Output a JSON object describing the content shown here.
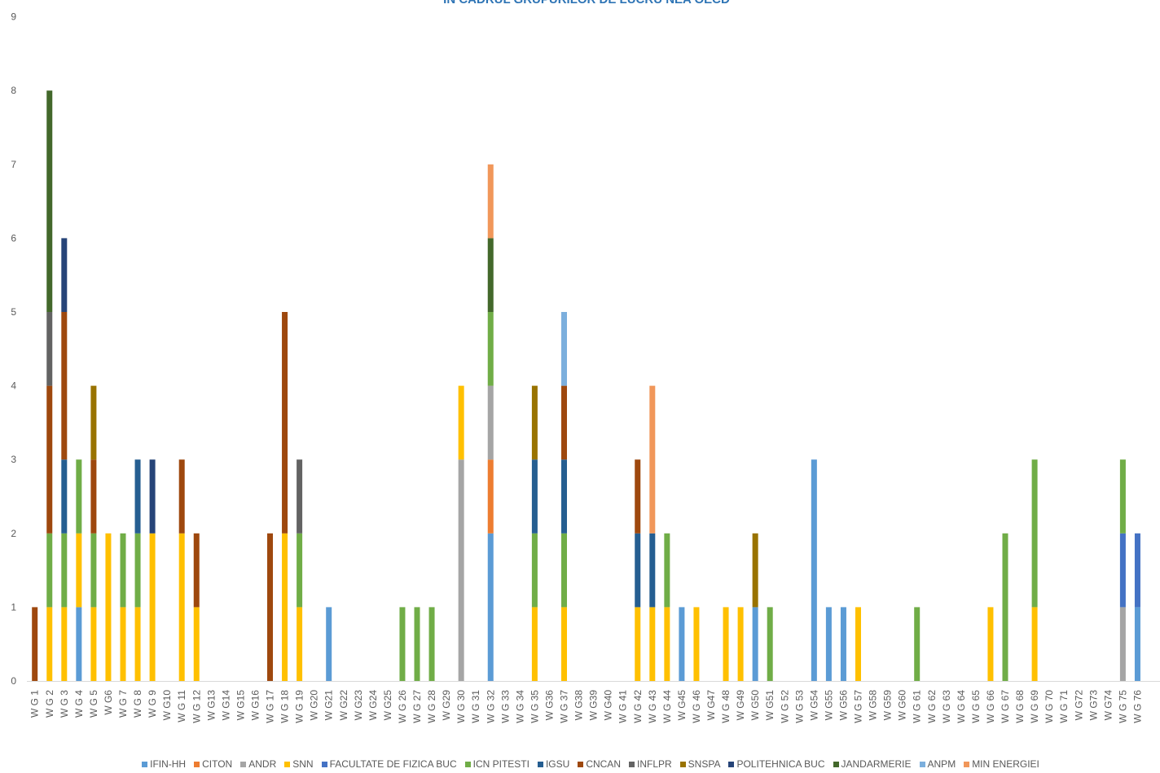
{
  "title": "ÎN CADRUL GRUPURILOR DE LUCRU NEA OECD",
  "chart_data": {
    "type": "bar",
    "stacked": true,
    "title": "ÎN CADRUL GRUPURILOR DE LUCRU NEA OECD",
    "xlabel": "",
    "ylabel": "",
    "ylim": [
      0,
      9
    ],
    "yticks": [
      "0",
      "1",
      "2",
      "3",
      "4",
      "5",
      "6",
      "7",
      "8",
      "9"
    ],
    "grid": false,
    "legend_position": "bottom",
    "categories": [
      "W G 1",
      "W G 2",
      "W G 3",
      "W G 4",
      "W G 5",
      "W G6",
      "W G 7",
      "W G 8",
      "W G 9",
      "W G10",
      "W G 11",
      "W G 12",
      "W G13",
      "W G14",
      "W G15",
      "W G16",
      "W G 17",
      "W G 18",
      "W G 19",
      "W G20",
      "W G21",
      "W G22",
      "W G23",
      "W G24",
      "W G25",
      "W G 26",
      "W G 27",
      "W G 28",
      "W G29",
      "W G 30",
      "W G 31",
      "W G 32",
      "W G 33",
      "W G 34",
      "W G 35",
      "W G36",
      "W G 37",
      "W G38",
      "W G39",
      "W G40",
      "W G 41",
      "W G 42",
      "W G 43",
      "W G 44",
      "W G45",
      "W G 46",
      "W G47",
      "W G 48",
      "W G49",
      "W G50",
      "W G51",
      "W G 52",
      "W G 53",
      "W G54",
      "W G55",
      "W G56",
      "W G 57",
      "W G58",
      "W G59",
      "W G60",
      "W G 61",
      "W G 62",
      "W G 63",
      "W G 64",
      "W G 65",
      "W G 66",
      "W G 67",
      "W G 68",
      "W G 69",
      "W G 70",
      "W G 71",
      "W G72",
      "W G73",
      "W G74",
      "W G 75",
      "W G 76"
    ],
    "series": [
      {
        "name": "IFIN-HH",
        "color": "#5b9bd5",
        "values": [
          0,
          0,
          0,
          1,
          0,
          0,
          0,
          0,
          0,
          0,
          0,
          0,
          0,
          0,
          0,
          0,
          0,
          0,
          0,
          0,
          1,
          0,
          0,
          0,
          0,
          0,
          0,
          0,
          0,
          0,
          0,
          2,
          0,
          0,
          0,
          0,
          0,
          0,
          0,
          0,
          0,
          0,
          0,
          0,
          1,
          0,
          0,
          0,
          0,
          1,
          0,
          0,
          0,
          3,
          1,
          1,
          0,
          0,
          0,
          0,
          0,
          0,
          0,
          0,
          0,
          0,
          0,
          0,
          0,
          0,
          0,
          0,
          0,
          0,
          0,
          1
        ]
      },
      {
        "name": "CITON",
        "color": "#ed7d31",
        "values": [
          0,
          0,
          0,
          0,
          0,
          0,
          0,
          0,
          0,
          0,
          0,
          0,
          0,
          0,
          0,
          0,
          0,
          0,
          0,
          0,
          0,
          0,
          0,
          0,
          0,
          0,
          0,
          0,
          0,
          0,
          0,
          1,
          0,
          0,
          0,
          0,
          0,
          0,
          0,
          0,
          0,
          0,
          0,
          0,
          0,
          0,
          0,
          0,
          0,
          0,
          0,
          0,
          0,
          0,
          0,
          0,
          0,
          0,
          0,
          0,
          0,
          0,
          0,
          0,
          0,
          0,
          0,
          0,
          0,
          0,
          0,
          0,
          0,
          0,
          0,
          0
        ]
      },
      {
        "name": "ANDR",
        "color": "#a5a5a5",
        "values": [
          0,
          0,
          0,
          0,
          0,
          0,
          0,
          0,
          0,
          0,
          0,
          0,
          0,
          0,
          0,
          0,
          0,
          0,
          0,
          0,
          0,
          0,
          0,
          0,
          0,
          0,
          0,
          0,
          0,
          3,
          0,
          1,
          0,
          0,
          0,
          0,
          0,
          0,
          0,
          0,
          0,
          0,
          0,
          0,
          0,
          0,
          0,
          0,
          0,
          0,
          0,
          0,
          0,
          0,
          0,
          0,
          0,
          0,
          0,
          0,
          0,
          0,
          0,
          0,
          0,
          0,
          0,
          0,
          0,
          0,
          0,
          0,
          0,
          0,
          1,
          0
        ]
      },
      {
        "name": "SNN",
        "color": "#ffc000",
        "values": [
          0,
          1,
          1,
          1,
          1,
          2,
          1,
          1,
          2,
          0,
          2,
          1,
          0,
          0,
          0,
          0,
          0,
          2,
          1,
          0,
          0,
          0,
          0,
          0,
          0,
          0,
          0,
          0,
          0,
          1,
          0,
          0,
          0,
          0,
          1,
          0,
          1,
          0,
          0,
          0,
          0,
          1,
          1,
          1,
          0,
          1,
          0,
          1,
          1,
          0,
          0,
          0,
          0,
          0,
          0,
          0,
          1,
          0,
          0,
          0,
          0,
          0,
          0,
          0,
          0,
          1,
          0,
          0,
          1,
          0,
          0,
          0,
          0,
          0,
          0,
          0
        ]
      },
      {
        "name": "FACULTATE DE FIZICA BUC",
        "color": "#4472c4",
        "values": [
          0,
          0,
          0,
          0,
          0,
          0,
          0,
          0,
          0,
          0,
          0,
          0,
          0,
          0,
          0,
          0,
          0,
          0,
          0,
          0,
          0,
          0,
          0,
          0,
          0,
          0,
          0,
          0,
          0,
          0,
          0,
          0,
          0,
          0,
          0,
          0,
          0,
          0,
          0,
          0,
          0,
          0,
          0,
          0,
          0,
          0,
          0,
          0,
          0,
          0,
          0,
          0,
          0,
          0,
          0,
          0,
          0,
          0,
          0,
          0,
          0,
          0,
          0,
          0,
          0,
          0,
          0,
          0,
          0,
          0,
          0,
          0,
          0,
          0,
          1,
          1
        ]
      },
      {
        "name": "ICN PITESTI",
        "color": "#70ad47",
        "values": [
          0,
          1,
          1,
          1,
          1,
          0,
          1,
          1,
          0,
          0,
          0,
          0,
          0,
          0,
          0,
          0,
          0,
          0,
          1,
          0,
          0,
          0,
          0,
          0,
          0,
          1,
          1,
          1,
          0,
          0,
          0,
          1,
          0,
          0,
          1,
          0,
          1,
          0,
          0,
          0,
          0,
          0,
          0,
          1,
          0,
          0,
          0,
          0,
          0,
          0,
          1,
          0,
          0,
          0,
          0,
          0,
          0,
          0,
          0,
          0,
          1,
          0,
          0,
          0,
          0,
          0,
          2,
          0,
          2,
          0,
          0,
          0,
          0,
          0,
          1,
          0
        ]
      },
      {
        "name": "IGSU",
        "color": "#255e91",
        "values": [
          0,
          0,
          1,
          0,
          0,
          0,
          0,
          1,
          0,
          0,
          0,
          0,
          0,
          0,
          0,
          0,
          0,
          0,
          0,
          0,
          0,
          0,
          0,
          0,
          0,
          0,
          0,
          0,
          0,
          0,
          0,
          0,
          0,
          0,
          1,
          0,
          1,
          0,
          0,
          0,
          0,
          1,
          1,
          0,
          0,
          0,
          0,
          0,
          0,
          0,
          0,
          0,
          0,
          0,
          0,
          0,
          0,
          0,
          0,
          0,
          0,
          0,
          0,
          0,
          0,
          0,
          0,
          0,
          0,
          0,
          0,
          0,
          0,
          0,
          0,
          0
        ]
      },
      {
        "name": "CNCAN",
        "color": "#9e480e",
        "values": [
          1,
          2,
          2,
          0,
          1,
          0,
          0,
          0,
          0,
          0,
          1,
          1,
          0,
          0,
          0,
          0,
          2,
          3,
          0,
          0,
          0,
          0,
          0,
          0,
          0,
          0,
          0,
          0,
          0,
          0,
          0,
          0,
          0,
          0,
          0,
          0,
          1,
          0,
          0,
          0,
          0,
          1,
          0,
          0,
          0,
          0,
          0,
          0,
          0,
          0,
          0,
          0,
          0,
          0,
          0,
          0,
          0,
          0,
          0,
          0,
          0,
          0,
          0,
          0,
          0,
          0,
          0,
          0,
          0,
          0,
          0,
          0,
          0,
          0,
          0,
          0
        ]
      },
      {
        "name": "INFLPR",
        "color": "#636363",
        "values": [
          0,
          1,
          0,
          0,
          0,
          0,
          0,
          0,
          0,
          0,
          0,
          0,
          0,
          0,
          0,
          0,
          0,
          0,
          1,
          0,
          0,
          0,
          0,
          0,
          0,
          0,
          0,
          0,
          0,
          0,
          0,
          0,
          0,
          0,
          0,
          0,
          0,
          0,
          0,
          0,
          0,
          0,
          0,
          0,
          0,
          0,
          0,
          0,
          0,
          0,
          0,
          0,
          0,
          0,
          0,
          0,
          0,
          0,
          0,
          0,
          0,
          0,
          0,
          0,
          0,
          0,
          0,
          0,
          0,
          0,
          0,
          0,
          0,
          0,
          0,
          0
        ]
      },
      {
        "name": "SNSPA",
        "color": "#997300",
        "values": [
          0,
          0,
          0,
          0,
          1,
          0,
          0,
          0,
          0,
          0,
          0,
          0,
          0,
          0,
          0,
          0,
          0,
          0,
          0,
          0,
          0,
          0,
          0,
          0,
          0,
          0,
          0,
          0,
          0,
          0,
          0,
          0,
          0,
          0,
          1,
          0,
          0,
          0,
          0,
          0,
          0,
          0,
          0,
          0,
          0,
          0,
          0,
          0,
          0,
          1,
          0,
          0,
          0,
          0,
          0,
          0,
          0,
          0,
          0,
          0,
          0,
          0,
          0,
          0,
          0,
          0,
          0,
          0,
          0,
          0,
          0,
          0,
          0,
          0,
          0,
          0
        ]
      },
      {
        "name": "POLITEHNICA BUC",
        "color": "#264478",
        "values": [
          0,
          0,
          1,
          0,
          0,
          0,
          0,
          0,
          1,
          0,
          0,
          0,
          0,
          0,
          0,
          0,
          0,
          0,
          0,
          0,
          0,
          0,
          0,
          0,
          0,
          0,
          0,
          0,
          0,
          0,
          0,
          0,
          0,
          0,
          0,
          0,
          0,
          0,
          0,
          0,
          0,
          0,
          0,
          0,
          0,
          0,
          0,
          0,
          0,
          0,
          0,
          0,
          0,
          0,
          0,
          0,
          0,
          0,
          0,
          0,
          0,
          0,
          0,
          0,
          0,
          0,
          0,
          0,
          0,
          0,
          0,
          0,
          0,
          0,
          0,
          0
        ]
      },
      {
        "name": "JANDARMERIE",
        "color": "#43682b",
        "values": [
          0,
          3,
          0,
          0,
          0,
          0,
          0,
          0,
          0,
          0,
          0,
          0,
          0,
          0,
          0,
          0,
          0,
          0,
          0,
          0,
          0,
          0,
          0,
          0,
          0,
          0,
          0,
          0,
          0,
          0,
          0,
          1,
          0,
          0,
          0,
          0,
          0,
          0,
          0,
          0,
          0,
          0,
          0,
          0,
          0,
          0,
          0,
          0,
          0,
          0,
          0,
          0,
          0,
          0,
          0,
          0,
          0,
          0,
          0,
          0,
          0,
          0,
          0,
          0,
          0,
          0,
          0,
          0,
          0,
          0,
          0,
          0,
          0,
          0,
          0,
          0
        ]
      },
      {
        "name": "ANPM",
        "color": "#7cafdd",
        "values": [
          0,
          0,
          0,
          0,
          0,
          0,
          0,
          0,
          0,
          0,
          0,
          0,
          0,
          0,
          0,
          0,
          0,
          0,
          0,
          0,
          0,
          0,
          0,
          0,
          0,
          0,
          0,
          0,
          0,
          0,
          0,
          0,
          0,
          0,
          0,
          0,
          1,
          0,
          0,
          0,
          0,
          0,
          0,
          0,
          0,
          0,
          0,
          0,
          0,
          0,
          0,
          0,
          0,
          0,
          0,
          0,
          0,
          0,
          0,
          0,
          0,
          0,
          0,
          0,
          0,
          0,
          0,
          0,
          0,
          0,
          0,
          0,
          0,
          0,
          0,
          0
        ]
      },
      {
        "name": "MIN ENERGIEI",
        "color": "#f1975a",
        "values": [
          0,
          0,
          0,
          0,
          0,
          0,
          0,
          0,
          0,
          0,
          0,
          0,
          0,
          0,
          0,
          0,
          0,
          0,
          0,
          0,
          0,
          0,
          0,
          0,
          0,
          0,
          0,
          0,
          0,
          0,
          0,
          1,
          0,
          0,
          0,
          0,
          0,
          0,
          0,
          0,
          0,
          0,
          2,
          0,
          0,
          0,
          0,
          0,
          0,
          0,
          0,
          0,
          0,
          0,
          0,
          0,
          0,
          0,
          0,
          0,
          0,
          0,
          0,
          0,
          0,
          0,
          0,
          0,
          0,
          0,
          0,
          0,
          0,
          0,
          0,
          0
        ]
      }
    ]
  }
}
